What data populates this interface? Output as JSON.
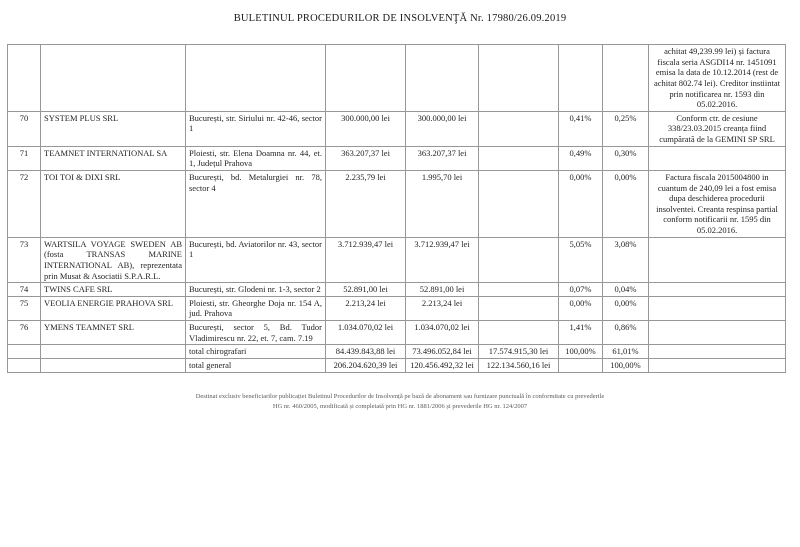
{
  "title": "BULETINUL PROCEDURILOR DE INSOLVENŢĂ Nr. 17980/26.09.2019",
  "table": {
    "continuation_row": {
      "observations": "achitat 49,239.99 lei) și factura fiscala seria ASGDI14 nr. 1451091 emisa la data de 10.12.2014 (rest de achitat 802.74 lei). Creditor instiintat prin notificarea nr. 1593 din 05.02.2016."
    },
    "rows": [
      {
        "nr": "70",
        "name": "SYSTEM PLUS SRL",
        "address": "București, str. Siriului nr. 42-46, sector 1",
        "amount_total": "300.000,00 lei",
        "amount_accepted": "300.000,00 lei",
        "amount_rejected": "",
        "pct_group": "0,41%",
        "pct_total": "0,25%",
        "observations": "Conform ctr. de cesiune 338/23.03.2015 creanța fiind cumpărată de la GEMINI SP SRL"
      },
      {
        "nr": "71",
        "name": "TEAMNET INTERNATIONAL SA",
        "address": "Ploiesti, str. Elena Doamna nr. 44, et. 1, Județul Prahova",
        "amount_total": "363.207,37 lei",
        "amount_accepted": "363.207,37 lei",
        "amount_rejected": "",
        "pct_group": "0,49%",
        "pct_total": "0,30%",
        "observations": ""
      },
      {
        "nr": "72",
        "name": "TOI TOI & DIXI SRL",
        "address": "București, bd. Metalurgiei nr. 78, sector 4",
        "amount_total": "2.235,79 lei",
        "amount_accepted": "1.995,70 lei",
        "amount_rejected": "",
        "pct_group": "0,00%",
        "pct_total": "0,00%",
        "observations": "Factura fiscala 2015004800 in cuantum de 240,09 lei a fost emisa dupa deschiderea procedurii insolventei. Creanta respinsa partial conform notificarii nr. 1595 din 05.02.2016."
      },
      {
        "nr": "73",
        "name": "WARTSILA VOYAGE SWEDEN AB (fosta TRANSAS MARINE INTERNATIONAL AB), reprezentata prin Musat & Asociatii S.P.A.R.L.",
        "address": "București, bd. Aviatorilor nr. 43, sector 1",
        "amount_total": "3.712.939,47 lei",
        "amount_accepted": "3.712.939,47 lei",
        "amount_rejected": "",
        "pct_group": "5,05%",
        "pct_total": "3,08%",
        "observations": ""
      },
      {
        "nr": "74",
        "name": "TWINS CAFE SRL",
        "address": "București, str. Glodeni nr. 1-3, sector 2",
        "amount_total": "52.891,00 lei",
        "amount_accepted": "52.891,00 lei",
        "amount_rejected": "",
        "pct_group": "0,07%",
        "pct_total": "0,04%",
        "observations": ""
      },
      {
        "nr": "75",
        "name": "VEOLIA ENERGIE PRAHOVA SRL",
        "address": "Ploiesti, str. Gheorghe Doja nr. 154 A, jud. Prahova",
        "amount_total": "2.213,24 lei",
        "amount_accepted": "2.213,24 lei",
        "amount_rejected": "",
        "pct_group": "0,00%",
        "pct_total": "0,00%",
        "observations": ""
      },
      {
        "nr": "76",
        "name": "YMENS TEAMNET SRL",
        "address": "București, sector 5, Bd. Tudor Vladimirescu nr. 22, et. 7, cam. 7.19",
        "amount_total": "1.034.070,02 lei",
        "amount_accepted": "1.034.070,02 lei",
        "amount_rejected": "",
        "pct_group": "1,41%",
        "pct_total": "0,86%",
        "observations": ""
      }
    ],
    "totals": [
      {
        "label": "total chirografari",
        "amount_total": "84.439.843,88 lei",
        "amount_accepted": "73.496.052,84 lei",
        "amount_rejected": "17.574.915,30 lei",
        "pct_group": "100,00%",
        "pct_total": "61,01%",
        "observations": ""
      },
      {
        "label": "total general",
        "amount_total": "206.204.620,39 lei",
        "amount_accepted": "120.456.492,32 lei",
        "amount_rejected": "122.134.560,16 lei",
        "pct_group": "",
        "pct_total": "100,00%",
        "observations": ""
      }
    ]
  },
  "footer": {
    "line1": "Destinat exclusiv beneficiarilor publicației Buletinul Procedurilor de Insolvență pe bază de abonament sau furnizare punctuală în conformitate cu prevederile",
    "line2": "HG nr. 460/2005, modificată și completată prin HG nr. 1881/2006 și prevederile HG nr. 124/2007"
  }
}
